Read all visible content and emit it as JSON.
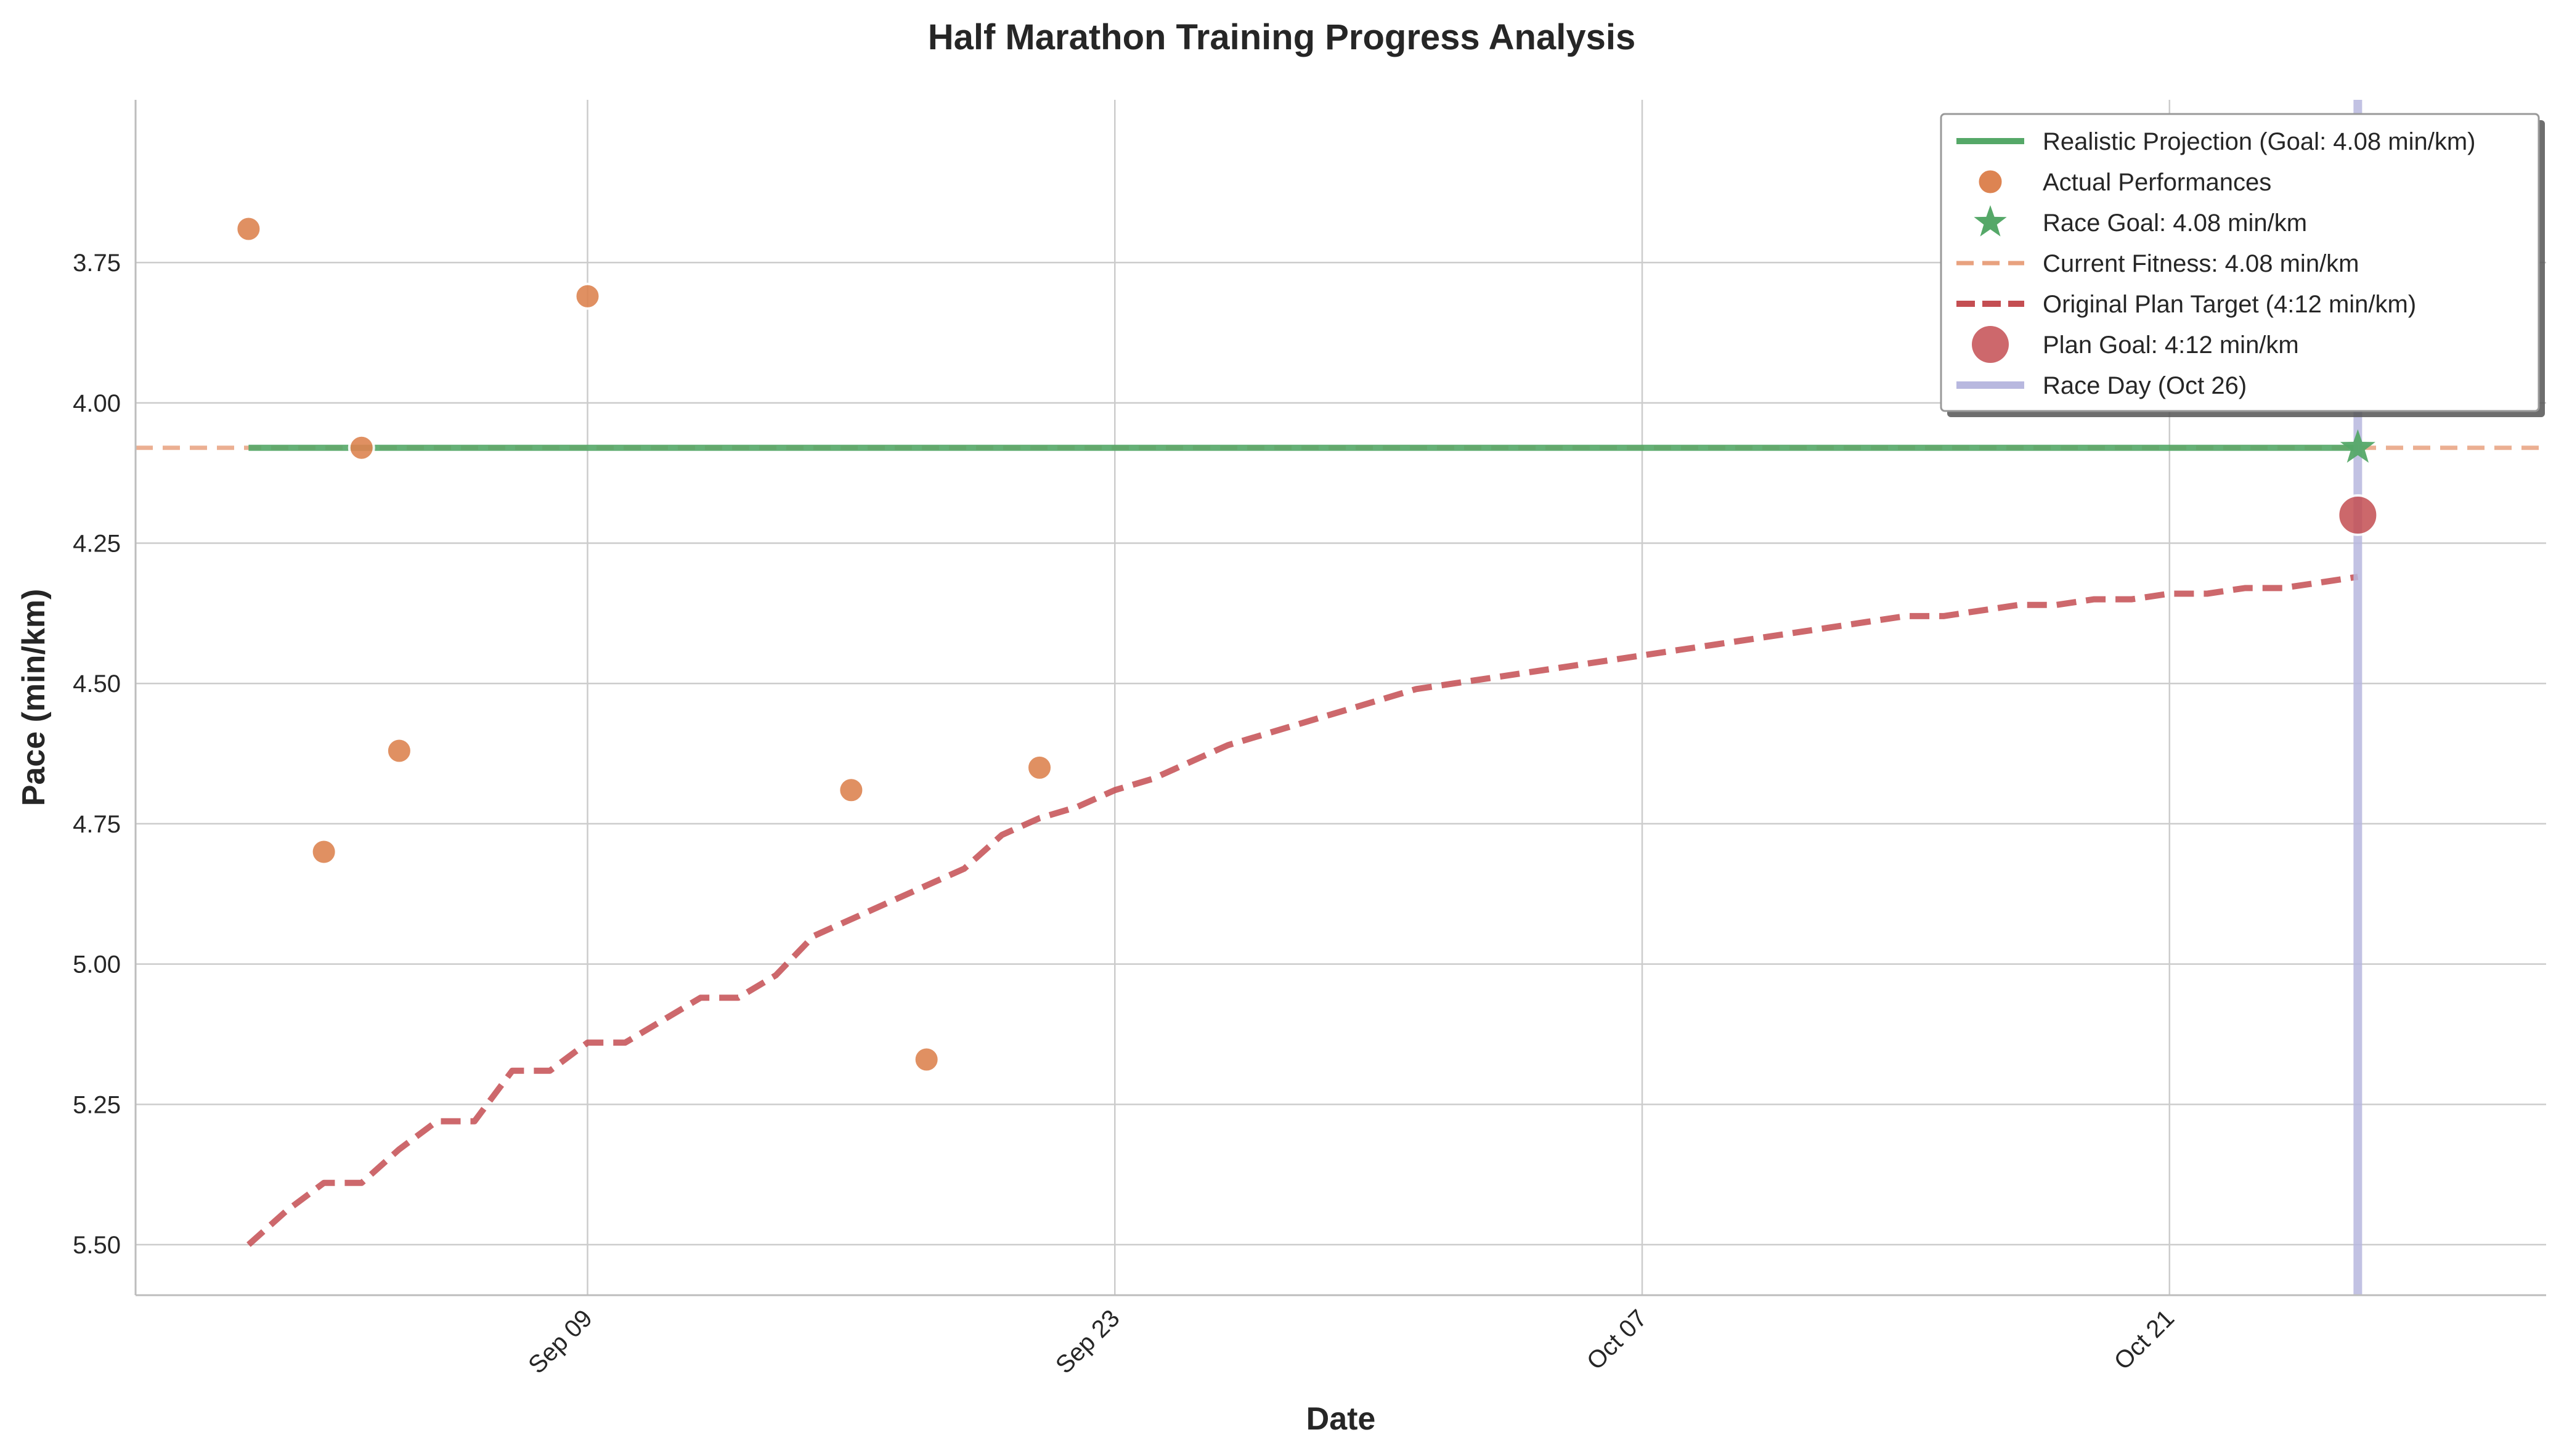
{
  "chart_data": {
    "type": "line",
    "title": "Half Marathon Training Progress Analysis",
    "xlabel": "Date",
    "ylabel": "Pace (min/km)",
    "xlim": [
      "2024-08-28",
      "2024-10-31"
    ],
    "ylim": [
      3.46,
      5.59
    ],
    "y_inverted": true,
    "grid": true,
    "legend_position": "upper-right",
    "x_ticks": [
      {
        "date": "2024-09-09",
        "label": "Sep 09"
      },
      {
        "date": "2024-09-23",
        "label": "Sep 23"
      },
      {
        "date": "2024-10-07",
        "label": "Oct 07"
      },
      {
        "date": "2024-10-21",
        "label": "Oct 21"
      }
    ],
    "y_ticks": [
      {
        "value": 3.75,
        "label": "3.75"
      },
      {
        "value": 4.0,
        "label": "4.00"
      },
      {
        "value": 4.25,
        "label": "4.25"
      },
      {
        "value": 4.5,
        "label": "4.50"
      },
      {
        "value": 4.75,
        "label": "4.75"
      },
      {
        "value": 5.0,
        "label": "5.00"
      },
      {
        "value": 5.25,
        "label": "5.25"
      },
      {
        "value": 5.5,
        "label": "5.50"
      }
    ],
    "series": [
      {
        "name": "Realistic Projection (Goal: 4.08 min/km)",
        "kind": "line",
        "color": "#55a868",
        "points": [
          [
            "2024-08-31",
            4.08
          ],
          [
            "2024-10-26",
            4.08
          ]
        ]
      },
      {
        "name": "Actual Performances",
        "kind": "scatter",
        "color": "#dd8452",
        "points": [
          [
            "2024-08-31",
            3.69
          ],
          [
            "2024-09-02",
            4.8
          ],
          [
            "2024-09-03",
            4.08
          ],
          [
            "2024-09-04",
            4.62
          ],
          [
            "2024-09-09",
            3.81
          ],
          [
            "2024-09-16",
            4.69
          ],
          [
            "2024-09-18",
            5.17
          ],
          [
            "2024-09-21",
            4.65
          ]
        ]
      },
      {
        "name": "Race Goal: 4.08 min/km",
        "kind": "marker-star",
        "color": "#55a868",
        "points": [
          [
            "2024-10-26",
            4.08
          ]
        ]
      },
      {
        "name": "Current Fitness: 4.08 min/km",
        "kind": "hline-dashed",
        "color": "#e8a27f",
        "value": 4.08
      },
      {
        "name": "Original Plan Target (4:12 min/km)",
        "kind": "line-dashed",
        "color": "#c44e52",
        "points": [
          [
            "2024-08-31",
            5.5
          ],
          [
            "2024-09-01",
            5.44
          ],
          [
            "2024-09-02",
            5.39
          ],
          [
            "2024-09-03",
            5.39
          ],
          [
            "2024-09-04",
            5.33
          ],
          [
            "2024-09-05",
            5.28
          ],
          [
            "2024-09-06",
            5.28
          ],
          [
            "2024-09-07",
            5.19
          ],
          [
            "2024-09-08",
            5.19
          ],
          [
            "2024-09-09",
            5.14
          ],
          [
            "2024-09-10",
            5.14
          ],
          [
            "2024-09-11",
            5.1
          ],
          [
            "2024-09-12",
            5.06
          ],
          [
            "2024-09-13",
            5.06
          ],
          [
            "2024-09-14",
            5.02
          ],
          [
            "2024-09-15",
            4.95
          ],
          [
            "2024-09-16",
            4.92
          ],
          [
            "2024-09-17",
            4.89
          ],
          [
            "2024-09-18",
            4.86
          ],
          [
            "2024-09-19",
            4.83
          ],
          [
            "2024-09-20",
            4.77
          ],
          [
            "2024-09-21",
            4.74
          ],
          [
            "2024-09-22",
            4.72
          ],
          [
            "2024-09-23",
            4.69
          ],
          [
            "2024-09-24",
            4.67
          ],
          [
            "2024-09-25",
            4.64
          ],
          [
            "2024-09-26",
            4.61
          ],
          [
            "2024-09-27",
            4.59
          ],
          [
            "2024-09-28",
            4.57
          ],
          [
            "2024-09-29",
            4.55
          ],
          [
            "2024-09-30",
            4.53
          ],
          [
            "2024-10-01",
            4.51
          ],
          [
            "2024-10-02",
            4.5
          ],
          [
            "2024-10-03",
            4.49
          ],
          [
            "2024-10-04",
            4.48
          ],
          [
            "2024-10-05",
            4.47
          ],
          [
            "2024-10-06",
            4.46
          ],
          [
            "2024-10-07",
            4.45
          ],
          [
            "2024-10-08",
            4.44
          ],
          [
            "2024-10-09",
            4.43
          ],
          [
            "2024-10-10",
            4.42
          ],
          [
            "2024-10-11",
            4.41
          ],
          [
            "2024-10-12",
            4.4
          ],
          [
            "2024-10-13",
            4.39
          ],
          [
            "2024-10-14",
            4.38
          ],
          [
            "2024-10-15",
            4.38
          ],
          [
            "2024-10-16",
            4.37
          ],
          [
            "2024-10-17",
            4.36
          ],
          [
            "2024-10-18",
            4.36
          ],
          [
            "2024-10-19",
            4.35
          ],
          [
            "2024-10-20",
            4.35
          ],
          [
            "2024-10-21",
            4.34
          ],
          [
            "2024-10-22",
            4.34
          ],
          [
            "2024-10-23",
            4.33
          ],
          [
            "2024-10-24",
            4.33
          ],
          [
            "2024-10-25",
            4.32
          ],
          [
            "2024-10-26",
            4.31
          ]
        ]
      },
      {
        "name": "Plan Goal: 4:12 min/km",
        "kind": "marker-circle",
        "color": "#c44e52",
        "points": [
          [
            "2024-10-26",
            4.2
          ]
        ]
      },
      {
        "name": "Race Day (Oct 26)",
        "kind": "vline",
        "color": "#b8b8df",
        "date": "2024-10-26"
      }
    ]
  }
}
